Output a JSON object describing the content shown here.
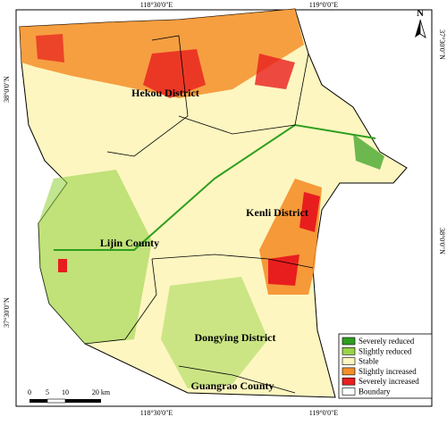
{
  "coords": {
    "top": [
      "118°30'0\"E",
      "119°0'0\"E"
    ],
    "bottom": [
      "118°30'0\"E",
      "119°0'0\"E"
    ],
    "left": [
      "38°0'0\"N",
      "37°30'0\"N"
    ],
    "right": [
      "38°0'0\"N",
      "37°30'0\"N"
    ]
  },
  "north": "N",
  "districts": [
    "Hekou District",
    "Kenli District",
    "Lijin County",
    "Dongying District",
    "Guangrao County"
  ],
  "legend": [
    {
      "label": "Severely reduced",
      "color": "#2e9e1e"
    },
    {
      "label": "Slightly reduced",
      "color": "#9ad34a"
    },
    {
      "label": "Stable",
      "color": "#fdf6c0"
    },
    {
      "label": "Slightly increased",
      "color": "#f58f2a"
    },
    {
      "label": "Severely increased",
      "color": "#e81e1e"
    },
    {
      "label": "Boundary",
      "color": "#ffffff"
    }
  ],
  "scale": [
    "0",
    "5",
    "10",
    "20 km"
  ]
}
